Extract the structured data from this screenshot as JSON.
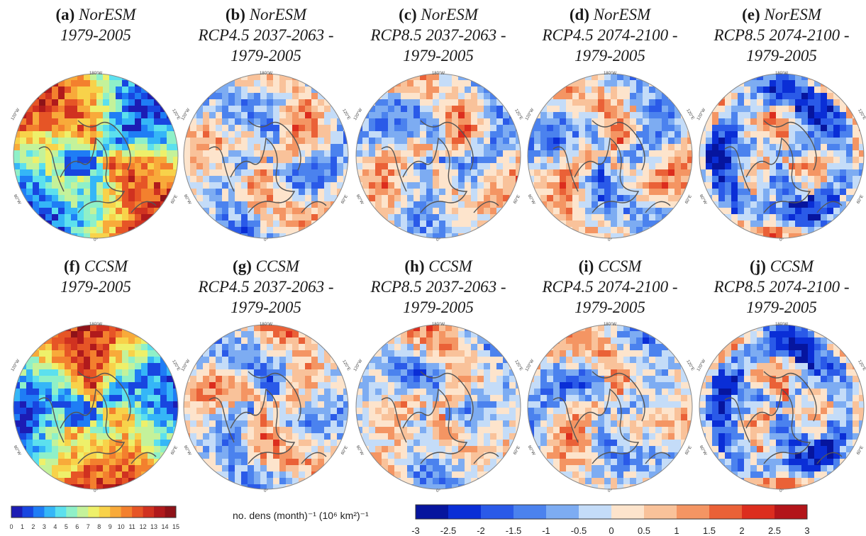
{
  "panels": [
    {
      "letter": "(a)",
      "model": "NorESM",
      "line2": "1979-2005",
      "line3": "",
      "kind": "absolute",
      "row": 0,
      "col": 0
    },
    {
      "letter": "(b)",
      "model": "NorESM",
      "line2": "RCP4.5 2037-2063 -",
      "line3": "1979-2005",
      "kind": "diff",
      "row": 0,
      "col": 1
    },
    {
      "letter": "(c)",
      "model": "NorESM",
      "line2": "RCP8.5 2037-2063 -",
      "line3": "1979-2005",
      "kind": "diff",
      "row": 0,
      "col": 2
    },
    {
      "letter": "(d)",
      "model": "NorESM",
      "line2": "RCP4.5 2074-2100 -",
      "line3": "1979-2005",
      "kind": "diff",
      "row": 0,
      "col": 3
    },
    {
      "letter": "(e)",
      "model": "NorESM",
      "line2": "RCP8.5 2074-2100 -",
      "line3": "1979-2005",
      "kind": "diff",
      "row": 0,
      "col": 4
    },
    {
      "letter": "(f)",
      "model": "CCSM",
      "line2": "1979-2005",
      "line3": "",
      "kind": "absolute",
      "row": 1,
      "col": 0
    },
    {
      "letter": "(g)",
      "model": "CCSM",
      "line2": "RCP4.5 2037-2063 -",
      "line3": "1979-2005",
      "kind": "diff",
      "row": 1,
      "col": 1
    },
    {
      "letter": "(h)",
      "model": "CCSM",
      "line2": "RCP8.5 2037-2063 -",
      "line3": "1979-2005",
      "kind": "diff",
      "row": 1,
      "col": 2
    },
    {
      "letter": "(i)",
      "model": "CCSM",
      "line2": "RCP4.5 2074-2100 -",
      "line3": "1979-2005",
      "kind": "diff",
      "row": 1,
      "col": 3
    },
    {
      "letter": "(j)",
      "model": "CCSM",
      "line2": "RCP8.5 2074-2100 -",
      "line3": "1979-2005",
      "kind": "diff",
      "row": 1,
      "col": 4
    }
  ],
  "lon_labels": {
    "top": "180°W",
    "upper_left": "120°W",
    "upper_right": "120°E",
    "lower_left": "60°W",
    "lower_right": "60°E",
    "bottom": "0°"
  },
  "abs_colorbar": {
    "ticks": [
      "0",
      "1",
      "2",
      "3",
      "4",
      "5",
      "6",
      "7",
      "8",
      "9",
      "10",
      "11",
      "12",
      "13",
      "14",
      "15"
    ],
    "colors": [
      "#1c1cb4",
      "#1846e0",
      "#1f7df5",
      "#35b6f7",
      "#5ce0ee",
      "#8ff0c8",
      "#c4f29a",
      "#eef06a",
      "#f8d24a",
      "#f8aa3a",
      "#f3802e",
      "#e65526",
      "#d03220",
      "#b01a1c",
      "#8e1218"
    ]
  },
  "diff_colorbar": {
    "units_label": "no. dens (month)⁻¹ (10⁶ km²)⁻¹",
    "ticks": [
      "-3",
      "-2.5",
      "-2",
      "-1.5",
      "-1",
      "-0.5",
      "0",
      "0.5",
      "1",
      "1.5",
      "2",
      "2.5",
      "3"
    ],
    "colors": [
      "#06159e",
      "#0a2ed6",
      "#2a5ae8",
      "#4b82ee",
      "#7dacf2",
      "#c4dcf8",
      "#fde4cc",
      "#f9c29a",
      "#f49563",
      "#ea6137",
      "#dc2d1e",
      "#b3151a"
    ]
  }
}
